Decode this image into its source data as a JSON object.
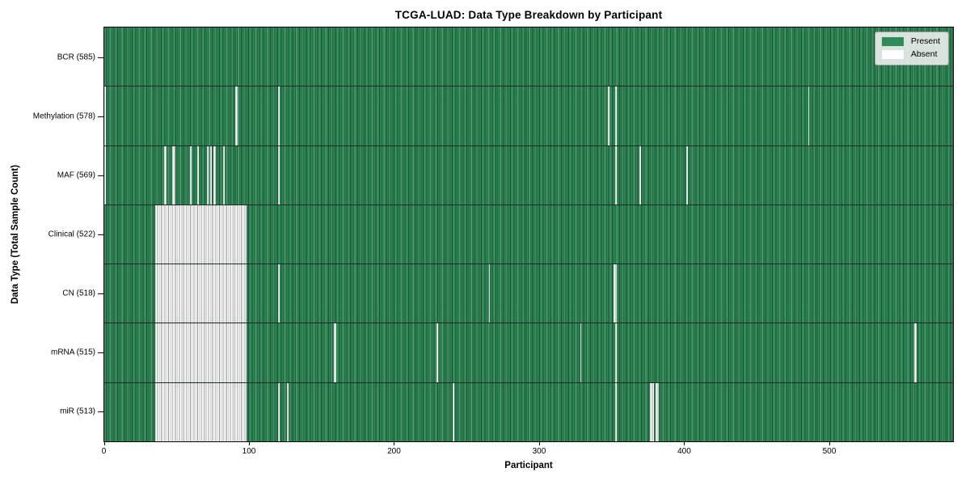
{
  "chart_data": {
    "type": "heatmap",
    "title": "TCGA-LUAD: Data Type Breakdown by Participant",
    "xlabel": "Participant",
    "ylabel": "Data Type (Total Sample Count)",
    "x_ticks": [
      0,
      100,
      200,
      300,
      400,
      500
    ],
    "xlim": [
      0,
      585
    ],
    "n_participants": 585,
    "grid": false,
    "legend_position": "upper right",
    "legend": [
      {
        "label": "Present",
        "color": "#2e8b57"
      },
      {
        "label": "Absent",
        "color": "#ffffff"
      }
    ],
    "colors": {
      "present_fill": "#2e8b57",
      "present_edge": "#14381f",
      "absent_fill": "#ffffff",
      "absent_edge": "#9d9d9d",
      "row_divider": "#1c2a20",
      "legend_bg": "#e8ebe8"
    },
    "rows": [
      {
        "data_type": "BCR",
        "label": "BCR (585)",
        "present_count": 585,
        "absent_ranges": []
      },
      {
        "data_type": "Methylation",
        "label": "Methylation (578)",
        "present_count": 578,
        "absent_ranges": [
          [
            0,
            0
          ],
          [
            90,
            91
          ],
          [
            120,
            120
          ],
          [
            347,
            347
          ],
          [
            352,
            352
          ],
          [
            485,
            485
          ]
        ]
      },
      {
        "data_type": "MAF",
        "label": "MAF (569)",
        "present_count": 569,
        "absent_ranges": [
          [
            0,
            0
          ],
          [
            41,
            42
          ],
          [
            47,
            48
          ],
          [
            59,
            59
          ],
          [
            64,
            64
          ],
          [
            71,
            71
          ],
          [
            73,
            73
          ],
          [
            75,
            76
          ],
          [
            82,
            82
          ],
          [
            120,
            120
          ],
          [
            352,
            352
          ],
          [
            369,
            369
          ],
          [
            401,
            401
          ]
        ]
      },
      {
        "data_type": "Clinical",
        "label": "Clinical (522)",
        "present_count": 522,
        "absent_ranges": [
          [
            35,
            97
          ]
        ]
      },
      {
        "data_type": "CN",
        "label": "CN (518)",
        "present_count": 518,
        "absent_ranges": [
          [
            35,
            97
          ],
          [
            120,
            120
          ],
          [
            265,
            265
          ],
          [
            351,
            352
          ]
        ]
      },
      {
        "data_type": "mRNA",
        "label": "mRNA (515)",
        "present_count": 515,
        "absent_ranges": [
          [
            35,
            97
          ],
          [
            158,
            159
          ],
          [
            229,
            229
          ],
          [
            328,
            328
          ],
          [
            352,
            352
          ],
          [
            558,
            559
          ]
        ]
      },
      {
        "data_type": "miR",
        "label": "miR (513)",
        "present_count": 513,
        "absent_ranges": [
          [
            35,
            97
          ],
          [
            120,
            120
          ],
          [
            126,
            126
          ],
          [
            240,
            240
          ],
          [
            352,
            352
          ],
          [
            376,
            378
          ],
          [
            380,
            381
          ]
        ]
      }
    ]
  }
}
